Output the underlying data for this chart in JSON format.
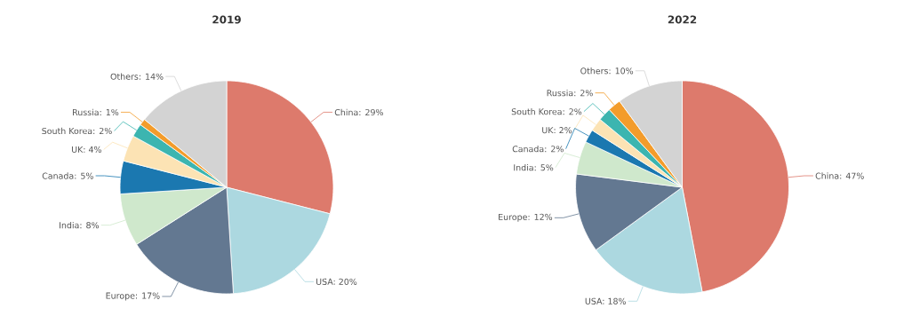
{
  "chart_data": [
    {
      "type": "pie",
      "title": "2019",
      "categories": [
        "China: 29%",
        "USA: 20%",
        "Europe: 17%",
        "India: 8%",
        "Canada: 5%",
        "UK: 4%",
        "South Korea: 2%",
        "Russia: 1%",
        "Others: 14%"
      ],
      "values": [
        29,
        20,
        17,
        8,
        5,
        4,
        2,
        1,
        14
      ],
      "colors": [
        "#dd7a6c",
        "#acd8e0",
        "#637891",
        "#cfe8cc",
        "#1b78b0",
        "#fce3b4",
        "#3cb5b0",
        "#f39c2b",
        "#d3d3d3"
      ]
    },
    {
      "type": "pie",
      "title": "2022",
      "categories": [
        "China: 47%",
        "USA: 18%",
        "Europe: 12%",
        "India: 5%",
        "Canada: 2%",
        "UK: 2%",
        "South Korea: 2%",
        "Russia: 2%",
        "Others: 10%"
      ],
      "values": [
        47,
        18,
        12,
        5,
        2,
        2,
        2,
        2,
        10
      ],
      "colors": [
        "#dd7a6c",
        "#acd8e0",
        "#637891",
        "#cfe8cc",
        "#1b78b0",
        "#fce3b4",
        "#3cb5b0",
        "#f39c2b",
        "#d3d3d3"
      ]
    }
  ]
}
